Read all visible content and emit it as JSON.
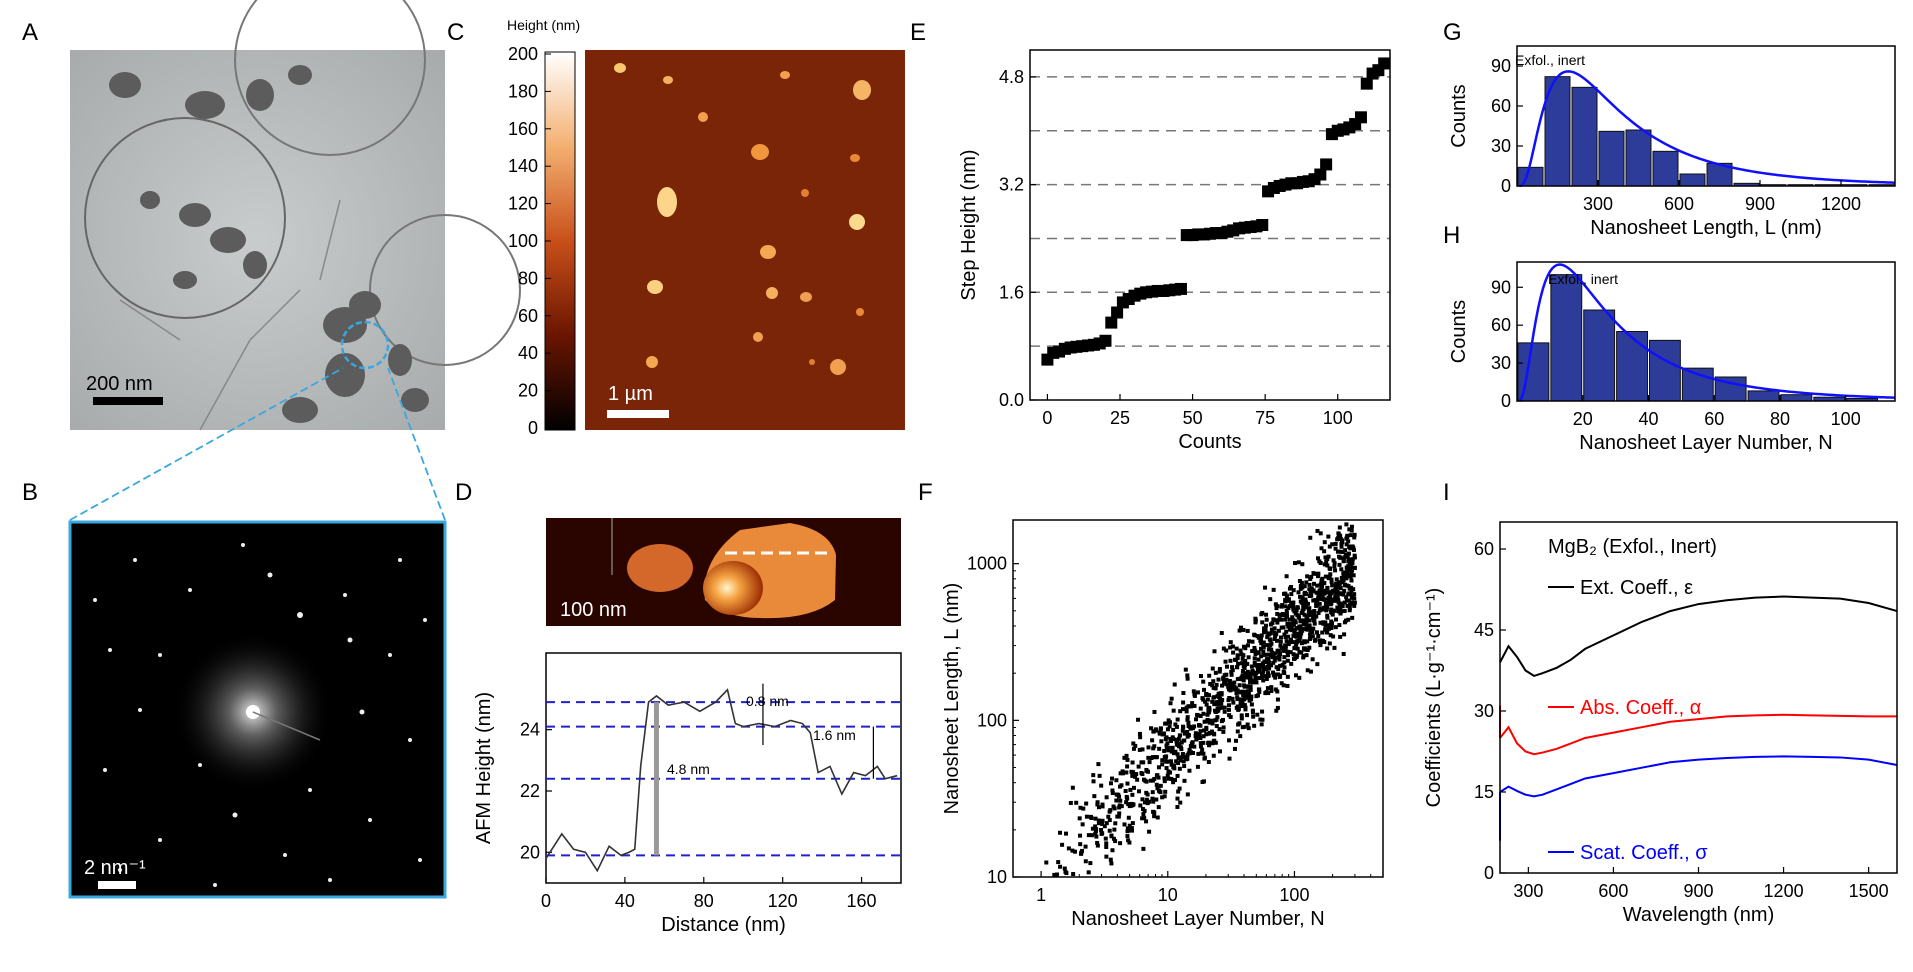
{
  "panels": {
    "A": {
      "letter": "A",
      "scale_bar": "200 nm"
    },
    "B": {
      "letter": "B",
      "scale_bar": "2 nm⁻¹"
    },
    "C": {
      "letter": "C",
      "colorbar_title": "Height (nm)",
      "colorbar_ticks": [
        "200",
        "180",
        "160",
        "140",
        "120",
        "100",
        "80",
        "60",
        "40",
        "20",
        "0"
      ],
      "scale_bar": "1 µm"
    },
    "D": {
      "letter": "D",
      "scale_bar": "100 nm",
      "steps": [
        "0.8 nm",
        "1.6 nm",
        "4.8 nm"
      ]
    },
    "E": {
      "letter": "E"
    },
    "F": {
      "letter": "F"
    },
    "G": {
      "letter": "G",
      "annotation": "Exfol., inert"
    },
    "H": {
      "letter": "H",
      "annotation": "Exfol., inert"
    },
    "I": {
      "letter": "I",
      "legend_title": "MgB₂ (Exfol., Inert)",
      "labels": [
        "Ext. Coeff., ε",
        "Abs. Coeff., α",
        "Scat. Coeff., σ"
      ]
    }
  },
  "chart_data": [
    {
      "panel": "D",
      "type": "line",
      "xlabel": "Distance (nm)",
      "ylabel": "AFM Height (nm)",
      "xlim": [
        0,
        180
      ],
      "ylim": [
        19,
        26.5
      ],
      "xticks": [
        "0",
        "40",
        "80",
        "120",
        "160"
      ],
      "yticks": [
        "20",
        "22",
        "24"
      ],
      "dashed_levels": [
        19.9,
        22.4,
        24.1,
        24.9
      ],
      "x": [
        0,
        8,
        14,
        20,
        26,
        32,
        38,
        42,
        45,
        48,
        52,
        56,
        62,
        70,
        78,
        86,
        92,
        96,
        100,
        108,
        116,
        124,
        130,
        134,
        138,
        144,
        150,
        156,
        162,
        168,
        172,
        178
      ],
      "y": [
        19.8,
        20.6,
        20.1,
        20.0,
        19.4,
        20.2,
        19.9,
        20.0,
        20.1,
        22.8,
        24.9,
        25.1,
        24.8,
        24.9,
        24.6,
        24.9,
        25.3,
        24.2,
        24.1,
        24.2,
        24.1,
        24.3,
        24.2,
        23.9,
        22.6,
        22.8,
        21.9,
        22.6,
        22.5,
        22.8,
        22.4,
        22.5
      ]
    },
    {
      "panel": "E",
      "type": "scatter",
      "xlabel": "Counts",
      "ylabel": "Step Height (nm)",
      "xlim": [
        -6,
        118
      ],
      "ylim": [
        0,
        5.2
      ],
      "xticks": [
        "0",
        "25",
        "50",
        "75",
        "100"
      ],
      "yticks": [
        "0.0",
        "1.6",
        "3.2",
        "4.8"
      ],
      "dashed_levels": [
        0.8,
        1.6,
        2.4,
        3.2,
        4.0,
        4.8
      ],
      "x": [
        0,
        2,
        4,
        6,
        8,
        10,
        12,
        14,
        16,
        18,
        20,
        22,
        24,
        26,
        28,
        30,
        32,
        34,
        36,
        38,
        40,
        42,
        44,
        46,
        48,
        50,
        52,
        54,
        56,
        58,
        60,
        62,
        64,
        66,
        68,
        70,
        72,
        74,
        76,
        78,
        80,
        82,
        84,
        86,
        88,
        90,
        92,
        94,
        96,
        98,
        100,
        102,
        104,
        106,
        108,
        110,
        112,
        114,
        116
      ],
      "y": [
        0.6,
        0.7,
        0.72,
        0.76,
        0.78,
        0.79,
        0.8,
        0.81,
        0.82,
        0.84,
        0.88,
        1.15,
        1.3,
        1.45,
        1.5,
        1.55,
        1.58,
        1.6,
        1.61,
        1.62,
        1.62,
        1.63,
        1.64,
        1.65,
        2.45,
        2.45,
        2.46,
        2.46,
        2.47,
        2.48,
        2.48,
        2.5,
        2.52,
        2.55,
        2.56,
        2.57,
        2.58,
        2.6,
        3.1,
        3.15,
        3.18,
        3.2,
        3.22,
        3.22,
        3.24,
        3.25,
        3.28,
        3.35,
        3.5,
        3.95,
        4.0,
        4.02,
        4.05,
        4.1,
        4.2,
        4.7,
        4.85,
        4.9,
        5.0
      ]
    },
    {
      "panel": "F",
      "type": "scatter",
      "xlabel": "Nanosheet Layer Number, N",
      "ylabel": "Nanosheet Length, L (nm)",
      "xscale": "log",
      "yscale": "log",
      "xlim": [
        0.6,
        500
      ],
      "ylim": [
        10,
        1900
      ],
      "xticks": [
        "1",
        "10",
        "100"
      ],
      "yticks": [
        "10",
        "100",
        "1000"
      ]
    },
    {
      "panel": "G",
      "type": "bar",
      "xlabel": "Nanosheet Length, L (nm)",
      "ylabel": "Counts",
      "xlim": [
        0,
        1400
      ],
      "ylim": [
        0,
        105
      ],
      "xticks": [
        "300",
        "600",
        "900",
        "1200"
      ],
      "yticks": [
        "0",
        "30",
        "60",
        "90"
      ],
      "bin_width": 100,
      "bin_centers": [
        50,
        150,
        250,
        350,
        450,
        550,
        650,
        750,
        850,
        950,
        1050,
        1150,
        1250,
        1350
      ],
      "values": [
        14,
        82,
        74,
        41,
        42,
        26,
        9,
        17,
        2,
        1,
        1,
        1,
        1,
        1
      ],
      "fit": {
        "name": "",
        "peak_x": 190,
        "peak_y": 86
      }
    },
    {
      "panel": "H",
      "type": "bar",
      "xlabel": "Nanosheet Layer Number, N",
      "ylabel": "Counts",
      "xlim": [
        0,
        115
      ],
      "ylim": [
        0,
        110
      ],
      "xticks": [
        "20",
        "40",
        "60",
        "80",
        "100"
      ],
      "yticks": [
        "0",
        "30",
        "60",
        "90"
      ],
      "bin_width": 10,
      "bin_centers": [
        5,
        15,
        25,
        35,
        45,
        55,
        65,
        75,
        85,
        95,
        105
      ],
      "values": [
        46,
        100,
        72,
        55,
        48,
        26,
        19,
        8,
        5,
        3,
        2
      ],
      "fit": {
        "name": "",
        "peak_x": 13,
        "peak_y": 108
      }
    },
    {
      "panel": "I",
      "type": "line",
      "xlabel": "Wavelength (nm)",
      "ylabel": "Coefficients (L·g⁻¹·cm⁻¹)",
      "xlim": [
        200,
        1600
      ],
      "ylim": [
        0,
        65
      ],
      "xticks": [
        "300",
        "600",
        "900",
        "1200",
        "1500"
      ],
      "yticks": [
        "0",
        "15",
        "30",
        "45",
        "60"
      ],
      "x": [
        200,
        230,
        260,
        290,
        320,
        350,
        400,
        450,
        500,
        600,
        700,
        800,
        900,
        1000,
        1100,
        1200,
        1300,
        1400,
        1500,
        1600
      ],
      "series": [
        {
          "name": "Ext. Coeff., ε",
          "color": "#000000",
          "values": [
            39,
            42,
            40,
            37.5,
            36.5,
            37,
            38,
            39.5,
            41.5,
            44,
            46.5,
            48.5,
            49.8,
            50.5,
            51,
            51.2,
            51,
            50.8,
            50,
            48.5
          ]
        },
        {
          "name": "Abs. Coeff., α",
          "color": "#ff0000",
          "values": [
            25,
            27,
            24,
            22.5,
            22,
            22.3,
            23,
            24,
            25,
            26,
            27,
            28,
            28.5,
            29,
            29.2,
            29.3,
            29.2,
            29.1,
            29,
            29
          ]
        },
        {
          "name": "Scat. Coeff., σ",
          "color": "#0000ff",
          "values": [
            15,
            16,
            15.2,
            14.5,
            14.2,
            14.5,
            15.5,
            16.5,
            17.5,
            18.5,
            19.5,
            20.5,
            21,
            21.3,
            21.5,
            21.6,
            21.5,
            21.4,
            21,
            20
          ]
        }
      ]
    }
  ]
}
